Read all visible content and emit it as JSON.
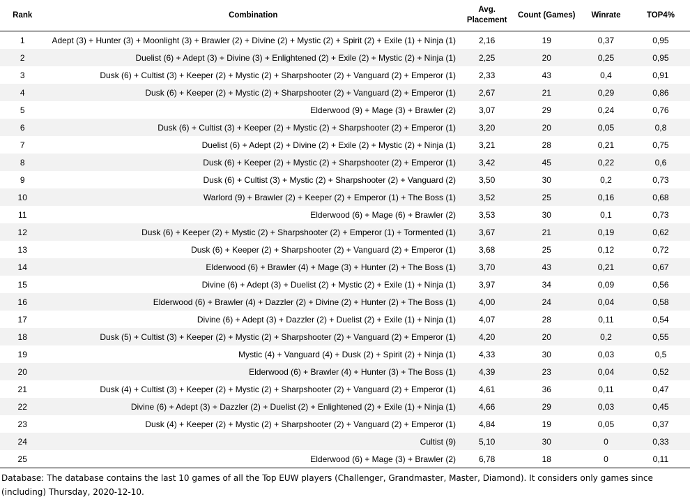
{
  "headers": {
    "rank": "Rank",
    "combination": "Combination",
    "avg_placement": "Avg. Placement",
    "count": "Count (Games)",
    "winrate": "Winrate",
    "top4": "TOP4%"
  },
  "rows": [
    {
      "rank": "1",
      "combination": "Adept (3) + Hunter (3) + Moonlight (3) + Brawler (2) + Divine (2) + Mystic (2) + Spirit (2) + Exile (1) + Ninja (1)",
      "avg": "2,16",
      "count": "19",
      "winrate": "0,37",
      "top4": "0,95"
    },
    {
      "rank": "2",
      "combination": "Duelist (6) + Adept (3) + Divine (3) + Enlightened (2) + Exile (2) + Mystic (2) + Ninja (1)",
      "avg": "2,25",
      "count": "20",
      "winrate": "0,25",
      "top4": "0,95"
    },
    {
      "rank": "3",
      "combination": "Dusk (6) + Cultist (3) + Keeper (2) + Mystic (2) + Sharpshooter (2) + Vanguard (2) + Emperor (1)",
      "avg": "2,33",
      "count": "43",
      "winrate": "0,4",
      "top4": "0,91"
    },
    {
      "rank": "4",
      "combination": "Dusk (6) + Keeper (2) + Mystic (2) + Sharpshooter (2) + Vanguard (2) + Emperor (1)",
      "avg": "2,67",
      "count": "21",
      "winrate": "0,29",
      "top4": "0,86"
    },
    {
      "rank": "5",
      "combination": "Elderwood (9) + Mage (3) + Brawler (2)",
      "avg": "3,07",
      "count": "29",
      "winrate": "0,24",
      "top4": "0,76"
    },
    {
      "rank": "6",
      "combination": "Dusk (6) + Cultist (3) + Keeper (2) + Mystic (2) + Sharpshooter (2) + Emperor (1)",
      "avg": "3,20",
      "count": "20",
      "winrate": "0,05",
      "top4": "0,8"
    },
    {
      "rank": "7",
      "combination": "Duelist (6) + Adept (2) + Divine (2) + Exile (2) + Mystic (2) + Ninja (1)",
      "avg": "3,21",
      "count": "28",
      "winrate": "0,21",
      "top4": "0,75"
    },
    {
      "rank": "8",
      "combination": "Dusk (6) + Keeper (2) + Mystic (2) + Sharpshooter (2) + Emperor (1)",
      "avg": "3,42",
      "count": "45",
      "winrate": "0,22",
      "top4": "0,6"
    },
    {
      "rank": "9",
      "combination": "Dusk (6) + Cultist (3) + Mystic (2) + Sharpshooter (2) + Vanguard (2)",
      "avg": "3,50",
      "count": "30",
      "winrate": "0,2",
      "top4": "0,73"
    },
    {
      "rank": "10",
      "combination": "Warlord (9) + Brawler (2) + Keeper (2) + Emperor (1) + The Boss (1)",
      "avg": "3,52",
      "count": "25",
      "winrate": "0,16",
      "top4": "0,68"
    },
    {
      "rank": "11",
      "combination": "Elderwood (6) + Mage (6) + Brawler (2)",
      "avg": "3,53",
      "count": "30",
      "winrate": "0,1",
      "top4": "0,73"
    },
    {
      "rank": "12",
      "combination": "Dusk (6) + Keeper (2) + Mystic (2) + Sharpshooter (2) + Emperor (1) + Tormented (1)",
      "avg": "3,67",
      "count": "21",
      "winrate": "0,19",
      "top4": "0,62"
    },
    {
      "rank": "13",
      "combination": "Dusk (6) + Keeper (2) + Sharpshooter (2) + Vanguard (2) + Emperor (1)",
      "avg": "3,68",
      "count": "25",
      "winrate": "0,12",
      "top4": "0,72"
    },
    {
      "rank": "14",
      "combination": "Elderwood (6) + Brawler (4) + Mage (3) + Hunter (2) + The Boss (1)",
      "avg": "3,70",
      "count": "43",
      "winrate": "0,21",
      "top4": "0,67"
    },
    {
      "rank": "15",
      "combination": "Divine (6) + Adept (3) + Duelist (2) + Mystic (2) + Exile (1) + Ninja (1)",
      "avg": "3,97",
      "count": "34",
      "winrate": "0,09",
      "top4": "0,56"
    },
    {
      "rank": "16",
      "combination": "Elderwood (6) + Brawler (4) + Dazzler (2) + Divine (2) + Hunter (2) + The Boss (1)",
      "avg": "4,00",
      "count": "24",
      "winrate": "0,04",
      "top4": "0,58"
    },
    {
      "rank": "17",
      "combination": "Divine (6) + Adept (3) + Dazzler (2) + Duelist (2) + Exile (1) + Ninja (1)",
      "avg": "4,07",
      "count": "28",
      "winrate": "0,11",
      "top4": "0,54"
    },
    {
      "rank": "18",
      "combination": "Dusk (5) + Cultist (3) + Keeper (2) + Mystic (2) + Sharpshooter (2) + Vanguard (2) + Emperor (1)",
      "avg": "4,20",
      "count": "20",
      "winrate": "0,2",
      "top4": "0,55"
    },
    {
      "rank": "19",
      "combination": "Mystic (4) + Vanguard (4) + Dusk (2) + Spirit (2) + Ninja (1)",
      "avg": "4,33",
      "count": "30",
      "winrate": "0,03",
      "top4": "0,5"
    },
    {
      "rank": "20",
      "combination": "Elderwood (6) + Brawler (4) + Hunter (3) + The Boss (1)",
      "avg": "4,39",
      "count": "23",
      "winrate": "0,04",
      "top4": "0,52"
    },
    {
      "rank": "21",
      "combination": "Dusk (4) + Cultist (3) + Keeper (2) + Mystic (2) + Sharpshooter (2) + Vanguard (2) + Emperor (1)",
      "avg": "4,61",
      "count": "36",
      "winrate": "0,11",
      "top4": "0,47"
    },
    {
      "rank": "22",
      "combination": "Divine (6) + Adept (3) + Dazzler (2) + Duelist (2) + Enlightened (2) + Exile (1) + Ninja (1)",
      "avg": "4,66",
      "count": "29",
      "winrate": "0,03",
      "top4": "0,45"
    },
    {
      "rank": "23",
      "combination": "Dusk (4) + Keeper (2) + Mystic (2) + Sharpshooter (2) + Vanguard (2) + Emperor (1)",
      "avg": "4,84",
      "count": "19",
      "winrate": "0,05",
      "top4": "0,37"
    },
    {
      "rank": "24",
      "combination": "Cultist (9)",
      "avg": "5,10",
      "count": "30",
      "winrate": "0",
      "top4": "0,33"
    },
    {
      "rank": "25",
      "combination": "Elderwood (6) + Mage (3) + Brawler (2)",
      "avg": "6,78",
      "count": "18",
      "winrate": "0",
      "top4": "0,11"
    }
  ],
  "footnote": "Database: The database contains the last 10 games of all the Top EUW players (Challenger, Grandmaster, Master, Diamond). It considers only games since (including) Thursday, 2020-12-10."
}
